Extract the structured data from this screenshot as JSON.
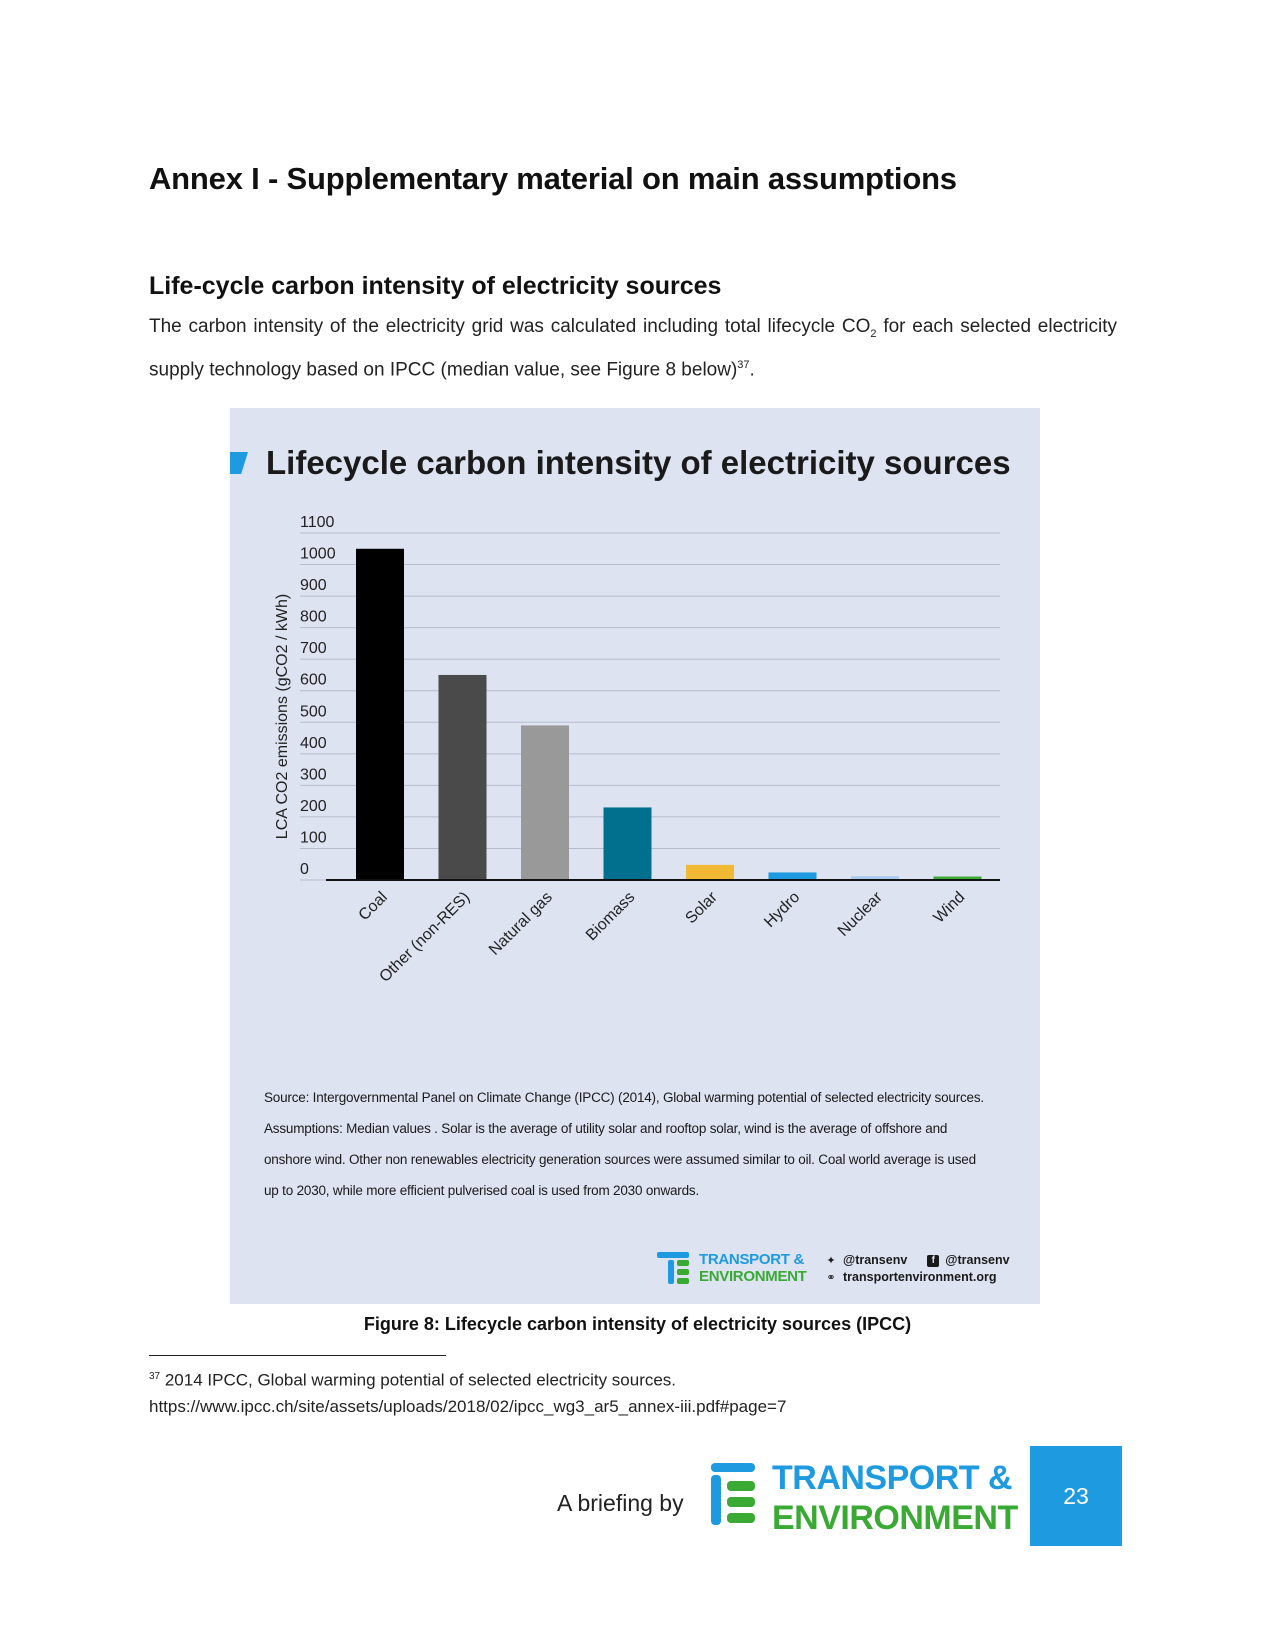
{
  "heading": "Annex I - Supplementary material on main assumptions",
  "section": {
    "title": "Life-cycle carbon intensity of electricity sources",
    "para_part1": "The carbon intensity of the electricity grid was calculated including total lifecycle CO",
    "para_sub": "2",
    "para_part2": " for each selected electricity supply technology based on IPCC (median value, see Figure 8 below)",
    "para_ref": "37",
    "para_end": "."
  },
  "figure": {
    "title": "Lifecycle carbon intensity of electricity sources",
    "source_note": "Source: Intergovernmental Panel on Climate Change (IPCC) (2014),  Global warming potential of selected electricity sources.",
    "assumptions_note": "Assumptions: Median values . Solar is the average of  utility solar and rooftop solar, wind is the average of offshore and onshore wind.  Other non renewables electricity generation sources were assumed similar to oil. Coal world average is used up to 2030, while more efficient pulverised coal is used from 2030 onwards.",
    "logo_line1": "TRANSPORT &",
    "logo_line2": "ENVIRONMENT",
    "twitter": "@transenv",
    "facebook": "@transenv",
    "website": "transportenvironment.org",
    "caption": "Figure 8: Lifecycle carbon intensity of electricity sources (IPCC)"
  },
  "chart_data": {
    "type": "bar",
    "title": "Lifecycle carbon intensity of electricity sources",
    "ylabel": "LCA CO2 emissions (gCO2 / kWh)",
    "xlabel": "",
    "ylim": [
      0,
      1100
    ],
    "yticks": [
      0,
      100,
      200,
      300,
      400,
      500,
      600,
      700,
      800,
      900,
      1000,
      1100
    ],
    "grid": true,
    "categories": [
      "Coal",
      "Other (non-RES)",
      "Natural gas",
      "Biomass",
      "Solar",
      "Hydro",
      "Nuclear",
      "Wind"
    ],
    "values": [
      1050,
      650,
      490,
      230,
      48,
      24,
      12,
      11
    ],
    "colors": [
      "#000000",
      "#4a4a4a",
      "#999999",
      "#00708e",
      "#f2b935",
      "#1e9ae0",
      "#a8cbed",
      "#3aaa35"
    ]
  },
  "footnote": {
    "number": "37",
    "text": " 2014 IPCC, Global warming potential of selected electricity sources.",
    "url": "https://www.ipcc.ch/site/assets/uploads/2018/02/ipcc_wg3_ar5_annex-iii.pdf#page=7"
  },
  "footer": {
    "briefing_text": "A briefing by",
    "logo_line1": "TRANSPORT &",
    "logo_line2": "ENVIRONMENT",
    "page_number": "23"
  }
}
